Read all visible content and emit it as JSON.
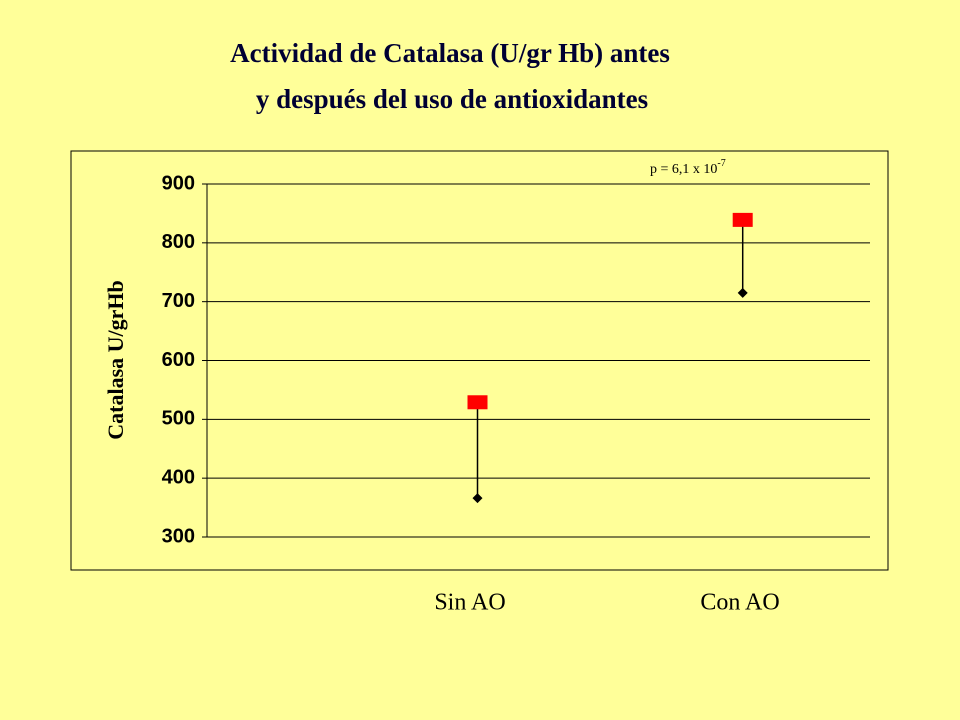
{
  "chart_data": {
    "type": "dot-pair",
    "title": [
      "Actividad de Catalasa (U/gr Hb) antes",
      "y después del uso de antioxidantes"
    ],
    "y_label": "Catalasa U/grHb",
    "annotation": {
      "text": "p = 6,1 x 10",
      "superscript": "-7"
    },
    "categories": [
      "Sin AO",
      "Con AO"
    ],
    "series": [
      {
        "color": "#ff0000",
        "marker": "square",
        "values": [
          529,
          839
        ]
      },
      {
        "color": "#000000",
        "marker": "diamond",
        "values": [
          366,
          715
        ]
      }
    ],
    "ylim": [
      300,
      900
    ],
    "yticks": [
      300,
      400,
      500,
      600,
      700,
      800,
      900
    ],
    "grid": true
  }
}
